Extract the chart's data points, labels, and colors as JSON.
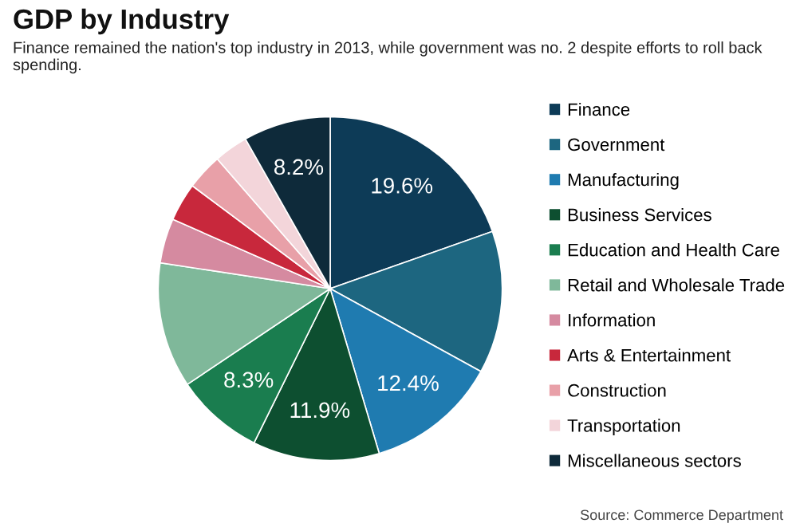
{
  "chart_data": {
    "type": "pie",
    "title": "GDP by Industry",
    "subtitle": "Finance remained the nation's top industry in 2013, while government was no. 2 despite efforts to roll back spending.",
    "categories": [
      "Finance",
      "Government",
      "Manufacturing",
      "Business Services",
      "Education and Health Care",
      "Retail and Wholesale Trade",
      "Information",
      "Arts & Entertainment",
      "Construction",
      "Transportation",
      "Miscellaneous sectors"
    ],
    "values": [
      19.6,
      13.4,
      12.4,
      11.9,
      8.3,
      11.8,
      4.2,
      3.6,
      3.4,
      3.2,
      8.2
    ],
    "value_labels": [
      "19.6%",
      null,
      "12.4%",
      "11.9%",
      "8.3%",
      null,
      null,
      null,
      null,
      null,
      "8.2%"
    ],
    "colors": [
      "#0d3b57",
      "#1d6680",
      "#1f7bb0",
      "#0d4f30",
      "#1a7d4f",
      "#7fb89a",
      "#d58aa0",
      "#c8283c",
      "#e8a0a8",
      "#f3d5da",
      "#0e2a3a"
    ],
    "legend": "right",
    "annotations": [
      "Source: Commerce Department"
    ]
  }
}
